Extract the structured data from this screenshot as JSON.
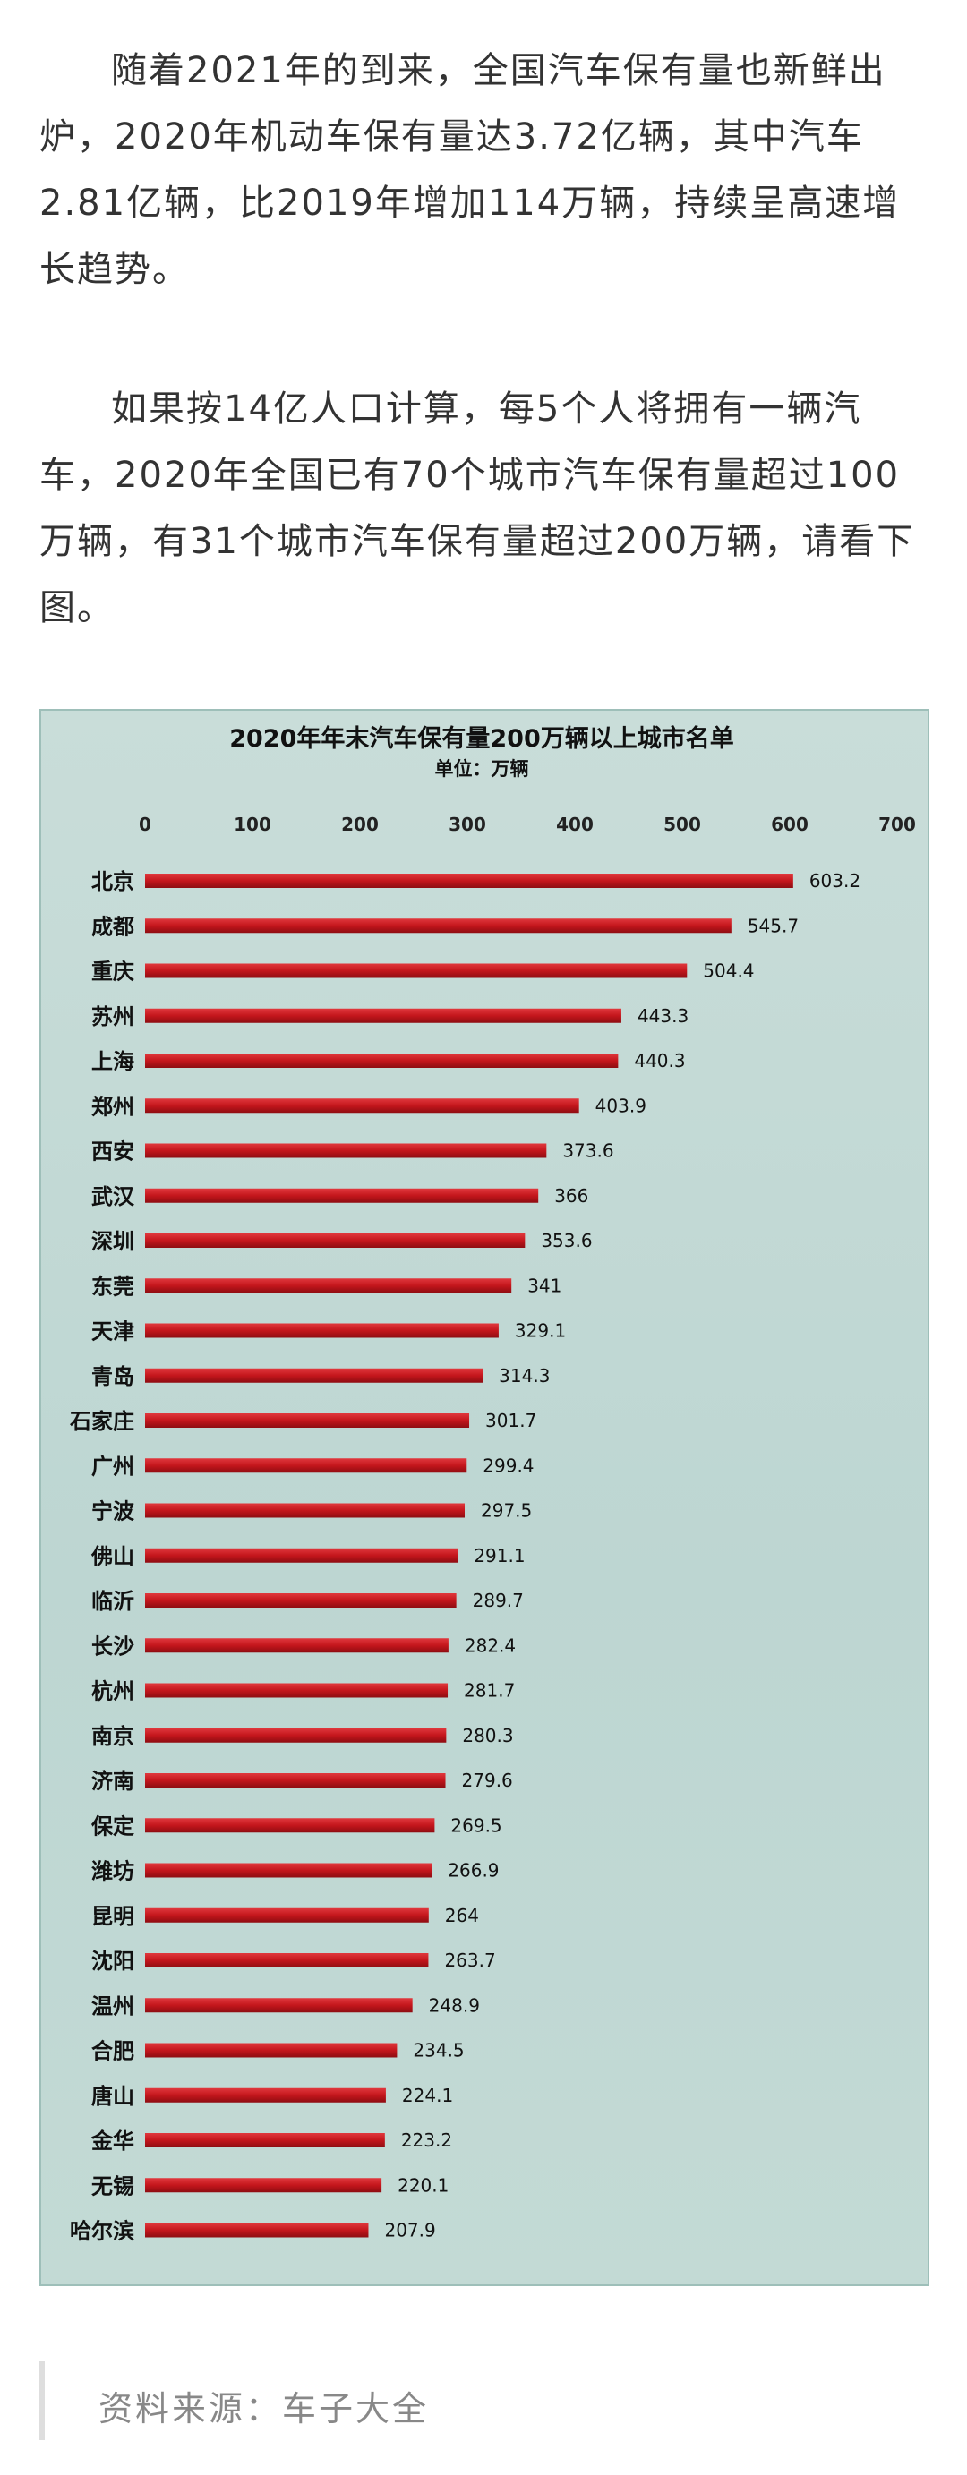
{
  "article": {
    "paragraph1": "随着2021年的到来，全国汽车保有量也新鲜出炉，2020年机动车保有量达3.72亿辆，其中汽车2.81亿辆，比2019年增加114万辆，持续呈高速增长趋势。",
    "paragraph2": "如果按14亿人口计算，每5个人将拥有一辆汽车，2020年全国已有70个城市汽车保有量超过100万辆，有31个城市汽车保有量超过200万辆，请看下图。",
    "source": "资料来源：车子大全"
  },
  "colors": {
    "bar": "#c4161c",
    "panel_background": "#c3dad5"
  },
  "chart_data": {
    "type": "bar",
    "orientation": "horizontal",
    "title": "2020年年末汽车保有量200万辆以上城市名单",
    "subtitle": "单位：万辆",
    "xlim": [
      0,
      700
    ],
    "ticks": [
      0,
      100,
      200,
      300,
      400,
      500,
      600,
      700
    ],
    "grid": false,
    "categories": [
      "北京",
      "成都",
      "重庆",
      "苏州",
      "上海",
      "郑州",
      "西安",
      "武汉",
      "深圳",
      "东莞",
      "天津",
      "青岛",
      "石家庄",
      "广州",
      "宁波",
      "佛山",
      "临沂",
      "长沙",
      "杭州",
      "南京",
      "济南",
      "保定",
      "潍坊",
      "昆明",
      "沈阳",
      "温州",
      "合肥",
      "唐山",
      "金华",
      "无锡",
      "哈尔滨"
    ],
    "values": [
      603.2,
      545.7,
      504.4,
      443.3,
      440.3,
      403.9,
      373.6,
      366,
      353.6,
      341,
      329.1,
      314.3,
      301.7,
      299.4,
      297.5,
      291.1,
      289.7,
      282.4,
      281.7,
      280.3,
      279.6,
      269.5,
      266.9,
      264,
      263.7,
      248.9,
      234.5,
      224.1,
      223.2,
      220.1,
      207.9
    ],
    "value_labels": [
      "603.2",
      "545.7",
      "504.4",
      "443.3",
      "440.3",
      "403.9",
      "373.6",
      "366",
      "353.6",
      "341",
      "329.1",
      "314.3",
      "301.7",
      "299.4",
      "297.5",
      "291.1",
      "289.7",
      "282.4",
      "281.7",
      "280.3",
      "279.6",
      "269.5",
      "266.9",
      "264",
      "263.7",
      "248.9",
      "234.5",
      "224.1",
      "223.2",
      "220.1",
      "207.9"
    ]
  }
}
